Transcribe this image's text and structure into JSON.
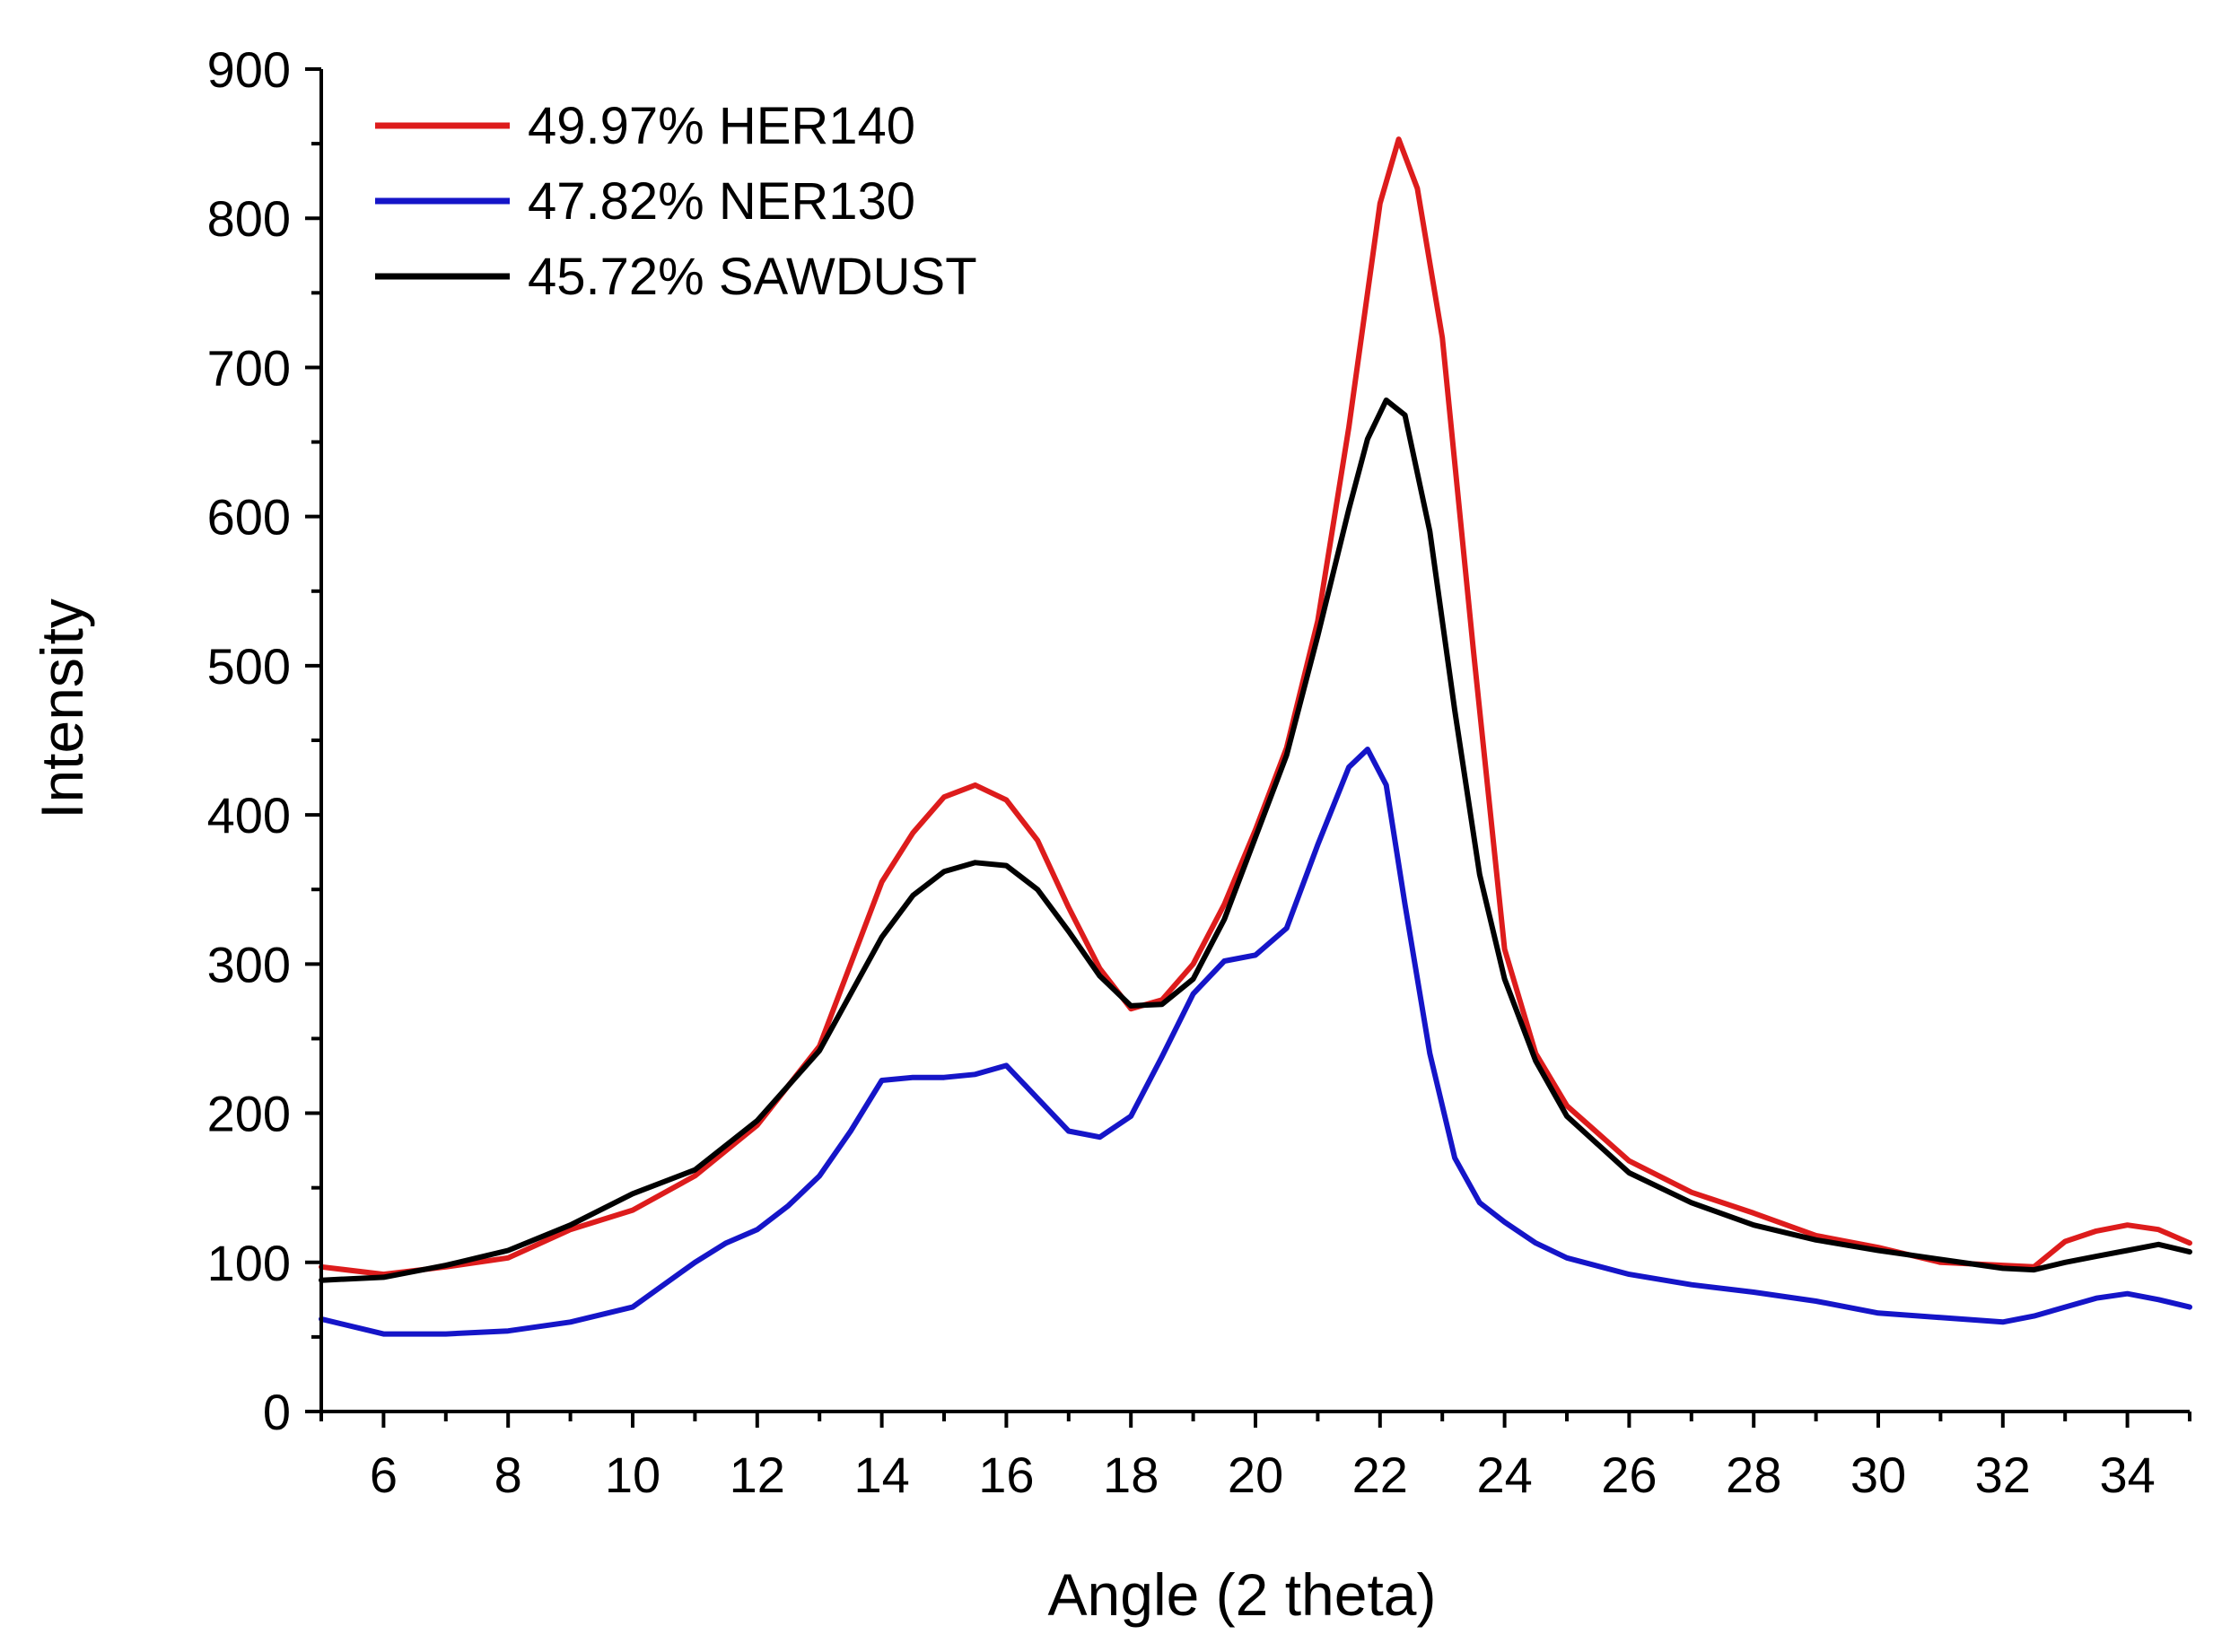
{
  "chart_data": {
    "type": "line",
    "title": "",
    "xlabel": "Angle (2 theta)",
    "ylabel": "Intensity",
    "xlim": [
      5,
      35
    ],
    "ylim": [
      0,
      900
    ],
    "xticks": [
      6,
      8,
      10,
      12,
      14,
      16,
      18,
      20,
      22,
      24,
      26,
      28,
      30,
      32,
      34
    ],
    "yticks": [
      0,
      100,
      200,
      300,
      400,
      500,
      600,
      700,
      800,
      900
    ],
    "grid": false,
    "legend_position": "top-left",
    "series": [
      {
        "name": "49.97% HER140",
        "color": "#dd1c1c",
        "x": [
          5,
          6,
          7,
          8,
          9,
          10,
          11,
          12,
          13,
          14,
          14.5,
          15,
          15.5,
          16,
          16.5,
          17,
          17.5,
          18,
          18.5,
          19,
          19.5,
          20,
          20.5,
          21,
          21.5,
          22,
          22.3,
          22.6,
          23,
          23.5,
          24,
          24.5,
          25,
          26,
          27,
          28,
          29,
          30,
          31,
          32,
          32.5,
          33,
          33.5,
          34,
          34.5,
          35
        ],
        "y": [
          97,
          92,
          97,
          103,
          122,
          135,
          158,
          192,
          245,
          355,
          388,
          412,
          420,
          410,
          383,
          338,
          297,
          270,
          276,
          300,
          340,
          390,
          445,
          530,
          660,
          810,
          853,
          820,
          720,
          510,
          310,
          240,
          205,
          168,
          147,
          133,
          118,
          110,
          100,
          98,
          97,
          114,
          121,
          125,
          122,
          113
        ]
      },
      {
        "name": "47.82% NER130",
        "color": "#1515c8",
        "x": [
          5,
          6,
          7,
          8,
          9,
          10,
          11,
          11.5,
          12,
          12.5,
          13,
          13.5,
          14,
          14.5,
          15,
          15.5,
          16,
          16.5,
          17,
          17.5,
          18,
          18.5,
          19,
          19.5,
          20,
          20.5,
          21,
          21.5,
          21.8,
          22.1,
          22.4,
          22.8,
          23.2,
          23.6,
          24,
          24.5,
          25,
          26,
          27,
          28,
          29,
          30,
          31,
          32,
          32.5,
          33,
          33.5,
          34,
          34.5,
          35
        ],
        "y": [
          62,
          52,
          52,
          54,
          60,
          70,
          100,
          113,
          122,
          138,
          158,
          188,
          222,
          224,
          224,
          226,
          232,
          210,
          188,
          184,
          198,
          238,
          280,
          302,
          306,
          324,
          380,
          432,
          444,
          420,
          340,
          240,
          170,
          140,
          127,
          113,
          103,
          92,
          85,
          80,
          74,
          66,
          63,
          60,
          64,
          70,
          76,
          79,
          75,
          70
        ]
      },
      {
        "name": "45.72% SAWDUST",
        "color": "#000000",
        "x": [
          5,
          6,
          7,
          8,
          9,
          10,
          11,
          12,
          13,
          14,
          14.5,
          15,
          15.5,
          16,
          16.5,
          17,
          17.5,
          18,
          18.5,
          19,
          19.5,
          20,
          20.5,
          21,
          21.5,
          21.8,
          22.1,
          22.4,
          22.8,
          23.2,
          23.6,
          24,
          24.5,
          25,
          26,
          27,
          28,
          29,
          30,
          31,
          32,
          32.5,
          33,
          33.5,
          34,
          34.5,
          35
        ],
        "y": [
          88,
          90,
          98,
          108,
          125,
          146,
          162,
          195,
          242,
          318,
          346,
          362,
          368,
          366,
          350,
          322,
          292,
          272,
          273,
          290,
          330,
          385,
          440,
          520,
          605,
          652,
          678,
          668,
          590,
          470,
          360,
          290,
          235,
          198,
          160,
          140,
          125,
          115,
          108,
          102,
          96,
          95,
          100,
          104,
          108,
          112,
          107
        ]
      }
    ]
  }
}
